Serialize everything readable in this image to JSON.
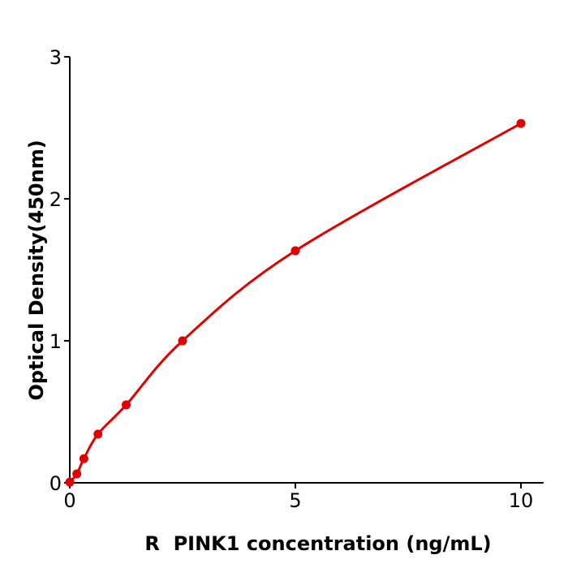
{
  "chart_data": {
    "type": "line",
    "title": "",
    "xlabel": "R  PINK1 concentration (ng/mL)",
    "ylabel": "Optical Density(450nm)",
    "xlim": [
      0,
      10.5
    ],
    "ylim": [
      0,
      3
    ],
    "xticks": [
      0,
      5,
      10
    ],
    "yticks": [
      0,
      1,
      2,
      3
    ],
    "grid": false,
    "color": "#e00000",
    "series": [
      {
        "x": [
          0,
          0.156,
          0.3125,
          0.625,
          1.25,
          2.5,
          5,
          10
        ],
        "y": [
          0.005,
          0.063,
          0.17,
          0.343,
          0.549,
          1.0,
          1.634,
          2.531
        ]
      }
    ]
  }
}
